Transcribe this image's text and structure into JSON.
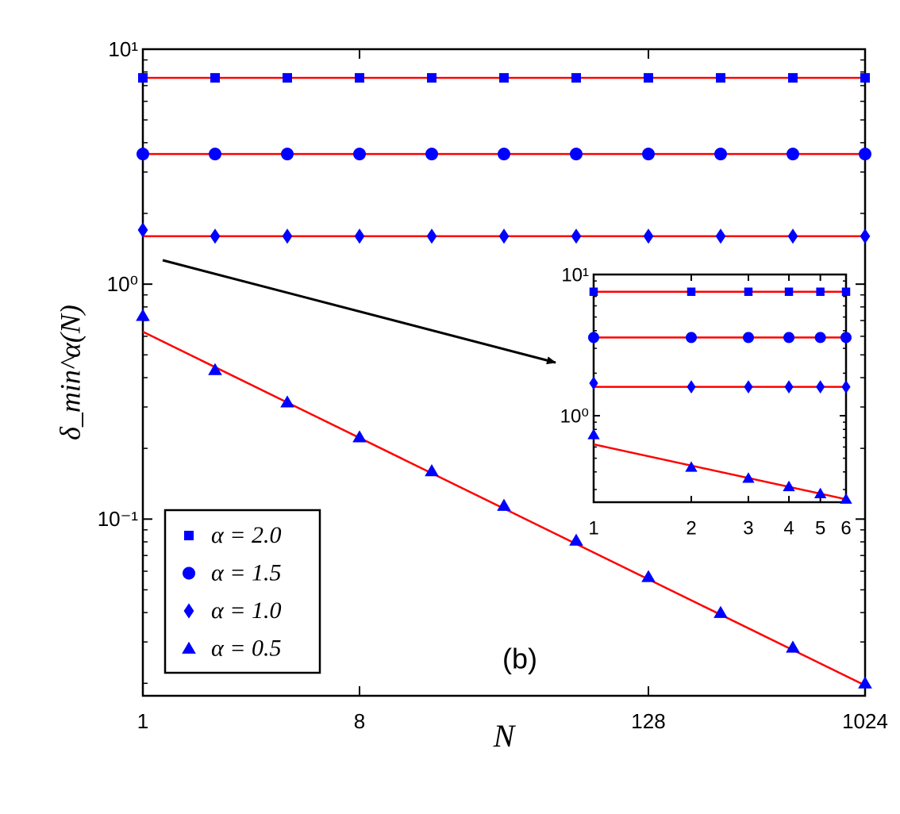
{
  "chart_data": [
    {
      "type": "scatter",
      "xlabel": "N",
      "ylabel": "δ_min^α(N)",
      "annotation": "(b)",
      "xscale": "log",
      "yscale": "log",
      "legend": "lower left",
      "fit_color": "#ff0000",
      "x": [
        1,
        2,
        4,
        8,
        16,
        32,
        64,
        128,
        256,
        512,
        1024
      ],
      "xlim": [
        1,
        1024
      ],
      "xticks": [
        1,
        8,
        128,
        1024
      ],
      "ylim": [
        0.0177,
        10
      ],
      "yticks": [
        {
          "value": 0.1,
          "label": "10⁻¹"
        },
        {
          "value": 1,
          "label": "10⁰"
        },
        {
          "value": 10,
          "label": "10¹"
        }
      ],
      "series": [
        {
          "name": "α = 2.0",
          "color": "#0000ff",
          "marker": "square",
          "values": [
            7.55,
            7.55,
            7.55,
            7.55,
            7.55,
            7.55,
            7.55,
            7.55,
            7.55,
            7.55,
            7.55
          ],
          "fit": {
            "x": [
              1,
              1024
            ],
            "values": [
              7.55,
              7.55
            ]
          }
        },
        {
          "name": "α = 1.5",
          "color": "#0000ff",
          "marker": "circle",
          "values": [
            3.58,
            3.58,
            3.58,
            3.58,
            3.58,
            3.58,
            3.58,
            3.58,
            3.58,
            3.58,
            3.58
          ],
          "fit": {
            "x": [
              1,
              1024
            ],
            "values": [
              3.58,
              3.58
            ]
          }
        },
        {
          "name": "α = 1.0",
          "color": "#0000ff",
          "marker": "diamond",
          "values": [
            1.7,
            1.6,
            1.6,
            1.6,
            1.6,
            1.6,
            1.6,
            1.6,
            1.6,
            1.6,
            1.6
          ],
          "fit": {
            "x": [
              1,
              1024
            ],
            "values": [
              1.6,
              1.6
            ]
          }
        },
        {
          "name": "α = 0.5",
          "color": "#0000ff",
          "marker": "triangle",
          "values": [
            0.733,
            0.431,
            0.314,
            0.223,
            0.16,
            0.114,
            0.081,
            0.0567,
            0.0399,
            0.0284,
            0.02
          ],
          "fit": {
            "x": [
              1,
              1024
            ],
            "values": [
              0.627,
              0.0196
            ]
          }
        }
      ]
    },
    {
      "type": "scatter",
      "xscale": "log",
      "yscale": "log",
      "fit_color": "#ff0000",
      "x": [
        1,
        2,
        3,
        4,
        5,
        6
      ],
      "xlim": [
        1,
        6
      ],
      "xticks": [
        1,
        2,
        3,
        4,
        5,
        6
      ],
      "ylim": [
        0.244,
        10
      ],
      "yticks": [
        {
          "value": 1,
          "label": "10⁰"
        },
        {
          "value": 10,
          "label": "10¹"
        }
      ],
      "series": [
        {
          "color": "#0000ff",
          "marker": "square",
          "values": [
            7.55,
            7.55,
            7.55,
            7.55,
            7.55,
            7.55
          ],
          "fit": {
            "x": [
              1,
              6
            ],
            "values": [
              7.55,
              7.55
            ]
          }
        },
        {
          "color": "#0000ff",
          "marker": "circle",
          "values": [
            3.58,
            3.58,
            3.58,
            3.58,
            3.58,
            3.58
          ],
          "fit": {
            "x": [
              1,
              6
            ],
            "values": [
              3.58,
              3.58
            ]
          }
        },
        {
          "color": "#0000ff",
          "marker": "diamond",
          "values": [
            1.7,
            1.6,
            1.6,
            1.6,
            1.6,
            1.6
          ],
          "fit": {
            "x": [
              1,
              6
            ],
            "values": [
              1.6,
              1.6
            ]
          }
        },
        {
          "color": "#0000ff",
          "marker": "triangle",
          "values": [
            0.733,
            0.431,
            0.36,
            0.314,
            0.28,
            0.256
          ],
          "fit": {
            "x": [
              1,
              6
            ],
            "values": [
              0.627,
              0.256
            ]
          }
        }
      ]
    }
  ]
}
